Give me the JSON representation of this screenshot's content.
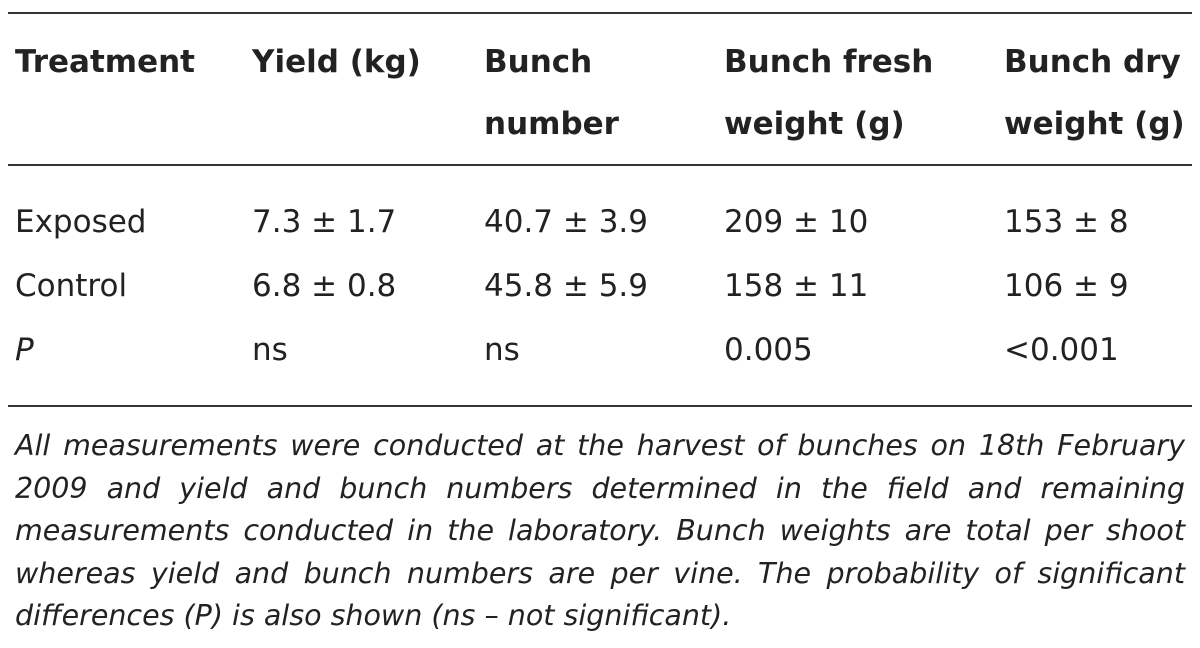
{
  "table": {
    "header": [
      [
        "Treatment"
      ],
      [
        "Yield (kg)"
      ],
      [
        "Bunch",
        "number"
      ],
      [
        "Bunch fresh",
        "weight (g)"
      ],
      [
        "Bunch dry",
        "weight (g)"
      ]
    ],
    "rows": [
      [
        "Exposed",
        "7.3 ± 1.7",
        "40.7 ± 3.9",
        "209 ± 10",
        "153 ± 8"
      ],
      [
        "Control",
        "6.8 ± 0.8",
        "45.8 ± 5.9",
        "158 ± 11",
        "106 ± 9"
      ],
      [
        "P",
        "ns",
        "ns",
        "0.005",
        "<0.001"
      ]
    ],
    "footnote": "All measurements were conducted at the harvest of bunches on 18th February 2009 and yield and bunch numbers determined in the field and remaining measurements conducted in the laboratory. Bunch weights are total per shoot whereas yield and bunch numbers are per vine. The probability of significant differences (P) is also shown (ns – not significant)."
  }
}
